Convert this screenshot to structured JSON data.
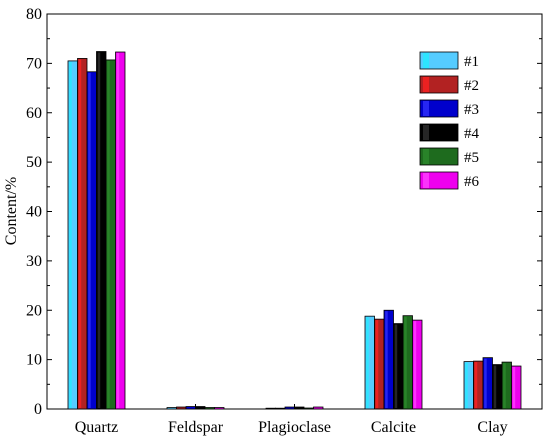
{
  "chart_data": {
    "type": "bar",
    "title": "",
    "xlabel": "",
    "ylabel": "Content/%",
    "ylim": [
      0,
      80
    ],
    "yticks": [
      "0",
      "10",
      "20",
      "30",
      "40",
      "50",
      "60",
      "70",
      "80"
    ],
    "categories": [
      "Quartz",
      "Feldspar",
      "Plagioclase",
      "Calcite",
      "Clay"
    ],
    "grid": false,
    "legend_position": "top-right",
    "series": [
      {
        "name": "#1",
        "color": "#55CCFF",
        "highlight": "#22EEFF",
        "values": [
          70.5,
          0.3,
          0.1,
          18.8,
          9.6
        ]
      },
      {
        "name": "#2",
        "color": "#B22222",
        "highlight": "#FF2222",
        "values": [
          71.0,
          0.4,
          0.1,
          18.2,
          9.7
        ]
      },
      {
        "name": "#3",
        "color": "#0000CC",
        "highlight": "#3333FF",
        "values": [
          68.3,
          0.5,
          0.4,
          20.0,
          10.4
        ]
      },
      {
        "name": "#4",
        "color": "#000000",
        "highlight": "#333333",
        "values": [
          72.4,
          0.5,
          0.4,
          17.3,
          9.0
        ]
      },
      {
        "name": "#5",
        "color": "#1E6B1E",
        "highlight": "#2E8B2E",
        "values": [
          70.7,
          0.3,
          0.2,
          18.9,
          9.5
        ]
      },
      {
        "name": "#6",
        "color": "#EE00EE",
        "highlight": "#FF44FF",
        "values": [
          72.3,
          0.3,
          0.4,
          18.0,
          8.7
        ]
      }
    ]
  }
}
